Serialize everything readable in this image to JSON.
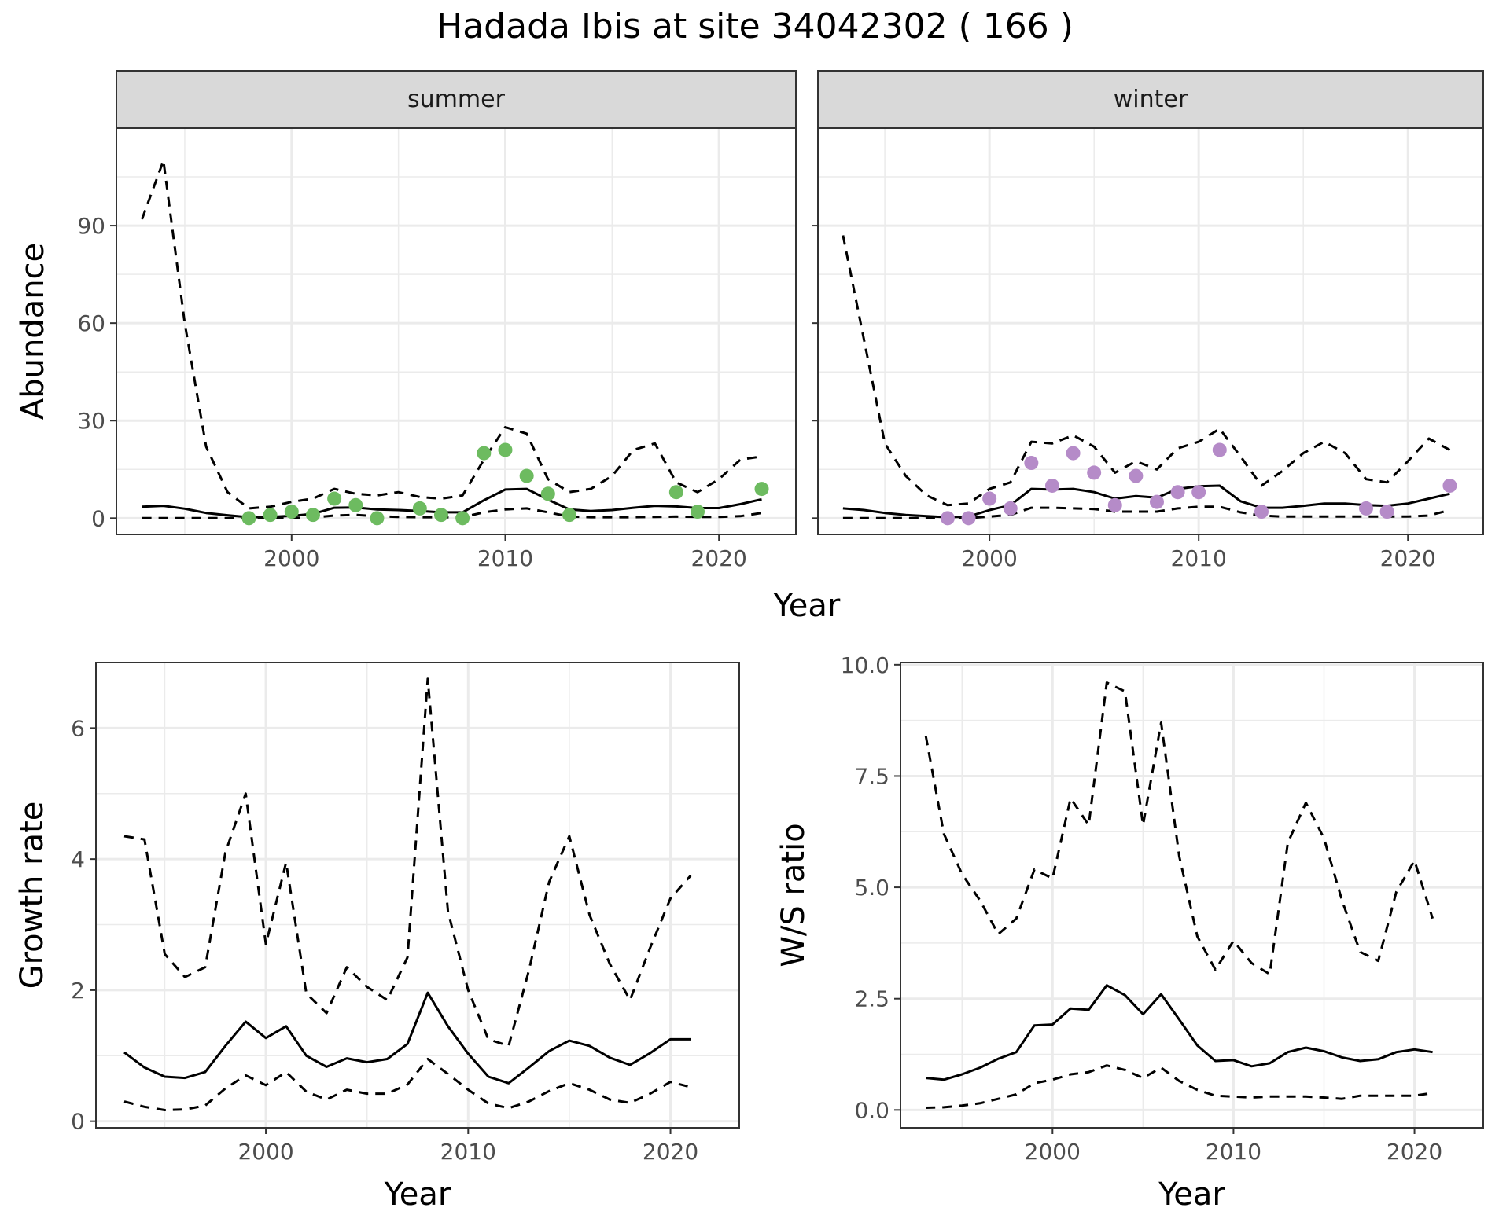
{
  "title": "Hadada Ibis at site 34042302 ( 166 )",
  "colors": {
    "summer_points": "#6dbb60",
    "winter_points": "#b58bc8",
    "lines": "#000000",
    "grid": "#ebebeb",
    "strip_fill": "#d9d9d9"
  },
  "chart_data": [
    {
      "id": "summer",
      "type": "line",
      "strip": "summer",
      "xlabel": "Year",
      "ylabel": "Abundance",
      "xlim": [
        1991.8,
        2023.6
      ],
      "ylim": [
        -5,
        120
      ],
      "xticks": [
        2000,
        2010,
        2020
      ],
      "yticks": [
        0,
        30,
        60,
        90
      ],
      "grid": true,
      "series": [
        {
          "role": "estimate",
          "style": "solid",
          "x": [
            1993,
            1994,
            1995,
            1996,
            1997,
            1998,
            1999,
            2000,
            2001,
            2002,
            2003,
            2004,
            2005,
            2006,
            2007,
            2008,
            2009,
            2010,
            2011,
            2012,
            2013,
            2014,
            2015,
            2016,
            2017,
            2018,
            2019,
            2020,
            2021,
            2022
          ],
          "y": [
            3.5,
            3.8,
            2.9,
            1.6,
            0.9,
            0.3,
            0.4,
            0.7,
            1.3,
            3.2,
            3.3,
            2.7,
            2.5,
            2.2,
            1.8,
            1.8,
            5.5,
            8.8,
            9,
            5.7,
            2.7,
            2.2,
            2.5,
            3.2,
            3.8,
            3.6,
            3.1,
            3.1,
            4.3,
            5.8
          ]
        },
        {
          "role": "upper",
          "style": "dashed",
          "x": [
            1993,
            1994,
            1995,
            1996,
            1997,
            1998,
            1999,
            2000,
            2001,
            2002,
            2003,
            2004,
            2005,
            2006,
            2007,
            2008,
            2009,
            2010,
            2011,
            2012,
            2013,
            2014,
            2015,
            2016,
            2017,
            2018,
            2019,
            2020,
            2021,
            2022
          ],
          "y": [
            92,
            110,
            60,
            22,
            8,
            3,
            3.5,
            5,
            6,
            9,
            7.5,
            7,
            8,
            6.5,
            6,
            7,
            18,
            28,
            26,
            12,
            8,
            9,
            13,
            21,
            23,
            11,
            8,
            12,
            18,
            19
          ]
        },
        {
          "role": "lower",
          "style": "dashed",
          "x": [
            1993,
            1994,
            1995,
            1996,
            1997,
            1998,
            1999,
            2000,
            2001,
            2002,
            2003,
            2004,
            2005,
            2006,
            2007,
            2008,
            2009,
            2010,
            2011,
            2012,
            2013,
            2014,
            2015,
            2016,
            2017,
            2018,
            2019,
            2020,
            2021,
            2022
          ],
          "y": [
            0,
            0,
            0,
            0,
            0,
            0,
            0.05,
            0.1,
            0.2,
            0.8,
            1,
            0.6,
            0.4,
            0.3,
            0.3,
            0.3,
            1.8,
            2.7,
            3,
            1.8,
            0.5,
            0.3,
            0.3,
            0.3,
            0.4,
            0.5,
            0.4,
            0.4,
            0.6,
            1.6
          ]
        },
        {
          "role": "counts",
          "style": "points",
          "x": [
            1998,
            1999,
            2000,
            2001,
            2002,
            2003,
            2004,
            2006,
            2007,
            2008,
            2009,
            2010,
            2011,
            2012,
            2013,
            2018,
            2019,
            2022
          ],
          "y": [
            0,
            1,
            2,
            1,
            6,
            4,
            0,
            3,
            1,
            0,
            20,
            21,
            13,
            7.5,
            1,
            8,
            2,
            9
          ]
        }
      ]
    },
    {
      "id": "winter",
      "type": "line",
      "strip": "winter",
      "xlabel": "Year",
      "ylabel": "Abundance",
      "xlim": [
        1991.8,
        2023.6
      ],
      "ylim": [
        -5,
        120
      ],
      "xticks": [
        2000,
        2010,
        2020
      ],
      "yticks": [
        0,
        30,
        60,
        90
      ],
      "grid": true,
      "series": [
        {
          "role": "estimate",
          "style": "solid",
          "x": [
            1993,
            1994,
            1995,
            1996,
            1997,
            1998,
            1999,
            2000,
            2001,
            2002,
            2003,
            2004,
            2005,
            2006,
            2007,
            2008,
            2009,
            2010,
            2011,
            2012,
            2013,
            2014,
            2015,
            2016,
            2017,
            2018,
            2019,
            2020,
            2021,
            2022
          ],
          "y": [
            3,
            2.5,
            1.6,
            1,
            0.6,
            0.3,
            0.5,
            2.5,
            4,
            9,
            8.8,
            9,
            8,
            6,
            6.8,
            6.3,
            9,
            9.8,
            10,
            5.2,
            3.2,
            3.2,
            3.8,
            4.5,
            4.5,
            4,
            3.8,
            4.5,
            6,
            7.5
          ]
        },
        {
          "role": "upper",
          "style": "dashed",
          "x": [
            1993,
            1994,
            1995,
            1996,
            1997,
            1998,
            1999,
            2000,
            2001,
            2002,
            2003,
            2004,
            2005,
            2006,
            2007,
            2008,
            2009,
            2010,
            2011,
            2012,
            2013,
            2014,
            2015,
            2016,
            2017,
            2018,
            2019,
            2020,
            2021,
            2022
          ],
          "y": [
            87,
            55,
            23,
            13,
            7,
            4,
            4.5,
            9,
            11,
            23.5,
            23,
            25.5,
            22,
            14,
            17.5,
            15,
            21.5,
            23.5,
            27.5,
            19,
            10,
            14.5,
            20,
            23.5,
            20,
            12,
            11,
            17.5,
            24.5,
            21
          ]
        },
        {
          "role": "lower",
          "style": "dashed",
          "x": [
            1993,
            1994,
            1995,
            1996,
            1997,
            1998,
            1999,
            2000,
            2001,
            2002,
            2003,
            2004,
            2005,
            2006,
            2007,
            2008,
            2009,
            2010,
            2011,
            2012,
            2013,
            2014,
            2015,
            2016,
            2017,
            2018,
            2019,
            2020,
            2021,
            2022
          ],
          "y": [
            0,
            0,
            0,
            0,
            0,
            0,
            0,
            0.5,
            1,
            3.2,
            3.2,
            3,
            2.8,
            2,
            2,
            2,
            3,
            3.5,
            3.5,
            1.8,
            0.8,
            0.5,
            0.5,
            0.5,
            0.5,
            0.5,
            0.5,
            0.5,
            0.8,
            2.5
          ]
        },
        {
          "role": "counts",
          "style": "points",
          "x": [
            1998,
            1999,
            2000,
            2001,
            2002,
            2003,
            2004,
            2005,
            2006,
            2007,
            2008,
            2009,
            2010,
            2011,
            2013,
            2018,
            2019,
            2022
          ],
          "y": [
            0,
            0,
            6,
            3,
            17,
            10,
            20,
            14,
            4,
            13,
            5,
            8,
            8,
            21,
            2,
            3,
            2,
            10
          ]
        }
      ]
    },
    {
      "id": "growth",
      "type": "line",
      "xlabel": "Year",
      "ylabel": "Growth rate",
      "xlim": [
        1991.6,
        2023.4
      ],
      "ylim": [
        -0.1,
        7.0
      ],
      "xticks": [
        2000,
        2010,
        2020
      ],
      "yticks": [
        0,
        2,
        4,
        6
      ],
      "grid": true,
      "series": [
        {
          "role": "estimate",
          "style": "solid",
          "x": [
            1993,
            1994,
            1995,
            1996,
            1997,
            1998,
            1999,
            2000,
            2001,
            2002,
            2003,
            2004,
            2005,
            2006,
            2007,
            2008,
            2009,
            2010,
            2011,
            2012,
            2013,
            2014,
            2015,
            2016,
            2017,
            2018,
            2019,
            2020,
            2021
          ],
          "y": [
            1.05,
            0.82,
            0.68,
            0.66,
            0.75,
            1.15,
            1.52,
            1.27,
            1.45,
            1,
            0.83,
            0.96,
            0.9,
            0.95,
            1.18,
            1.96,
            1.45,
            1.03,
            0.68,
            0.58,
            0.82,
            1.07,
            1.23,
            1.15,
            0.97,
            0.86,
            1.04,
            1.25,
            1.25
          ]
        },
        {
          "role": "upper",
          "style": "dashed",
          "x": [
            1993,
            1994,
            1995,
            1996,
            1997,
            1998,
            1999,
            2000,
            2001,
            2002,
            2003,
            2004,
            2005,
            2006,
            2007,
            2008,
            2009,
            2010,
            2011,
            2012,
            2013,
            2014,
            2015,
            2016,
            2017,
            2018,
            2019,
            2020,
            2021
          ],
          "y": [
            4.35,
            4.3,
            2.55,
            2.2,
            2.35,
            4.1,
            5,
            2.7,
            3.95,
            1.95,
            1.65,
            2.35,
            2.05,
            1.85,
            2.5,
            6.75,
            3.2,
            2,
            1.25,
            1.15,
            2.3,
            3.65,
            4.35,
            3.15,
            2.4,
            1.85,
            2.65,
            3.4,
            3.75
          ]
        },
        {
          "role": "lower",
          "style": "dashed",
          "x": [
            1993,
            1994,
            1995,
            1996,
            1997,
            1998,
            1999,
            2000,
            2001,
            2002,
            2003,
            2004,
            2005,
            2006,
            2007,
            2008,
            2009,
            2010,
            2011,
            2012,
            2013,
            2014,
            2015,
            2016,
            2017,
            2018,
            2019,
            2020,
            2021
          ],
          "y": [
            0.3,
            0.22,
            0.17,
            0.18,
            0.24,
            0.5,
            0.7,
            0.55,
            0.75,
            0.45,
            0.33,
            0.48,
            0.42,
            0.42,
            0.56,
            0.95,
            0.72,
            0.48,
            0.27,
            0.2,
            0.3,
            0.46,
            0.58,
            0.48,
            0.33,
            0.28,
            0.42,
            0.6,
            0.52
          ]
        }
      ]
    },
    {
      "id": "ratio",
      "type": "line",
      "xlabel": "Year",
      "ylabel": "W/S ratio",
      "xlim": [
        1991.6,
        2023.8
      ],
      "ylim": [
        -0.4,
        10.05
      ],
      "xticks": [
        2000,
        2010,
        2020
      ],
      "yticks": [
        0.0,
        2.5,
        5.0,
        7.5,
        10.0
      ],
      "yticklabels": [
        "0.0",
        "2.5",
        "5.0",
        "7.5",
        "10.0"
      ],
      "grid": true,
      "series": [
        {
          "role": "estimate",
          "style": "solid",
          "x": [
            1993,
            1994,
            1995,
            1996,
            1997,
            1998,
            1999,
            2000,
            2001,
            2002,
            2003,
            2004,
            2005,
            2006,
            2007,
            2008,
            2009,
            2010,
            2011,
            2012,
            2013,
            2014,
            2015,
            2016,
            2017,
            2018,
            2019,
            2020,
            2021
          ],
          "y": [
            0.72,
            0.68,
            0.8,
            0.95,
            1.15,
            1.3,
            1.9,
            1.92,
            2.28,
            2.25,
            2.8,
            2.58,
            2.15,
            2.6,
            2.03,
            1.45,
            1.1,
            1.12,
            0.98,
            1.05,
            1.3,
            1.4,
            1.32,
            1.18,
            1.1,
            1.14,
            1.3,
            1.36,
            1.3
          ]
        },
        {
          "role": "upper",
          "style": "dashed",
          "x": [
            1993,
            1994,
            1995,
            1996,
            1997,
            1998,
            1999,
            2000,
            2001,
            2002,
            2003,
            2004,
            2005,
            2006,
            2007,
            2008,
            2009,
            2010,
            2011,
            2012,
            2013,
            2014,
            2015,
            2016,
            2017,
            2018,
            2019,
            2020,
            2021
          ],
          "y": [
            8.4,
            6.2,
            5.3,
            4.7,
            3.95,
            4.3,
            5.4,
            5.2,
            7,
            6.4,
            9.6,
            9.4,
            6.4,
            8.7,
            5.7,
            3.9,
            3.15,
            3.8,
            3.3,
            3.05,
            6,
            6.9,
            6.1,
            4.7,
            3.55,
            3.35,
            4.9,
            5.6,
            4.3
          ]
        },
        {
          "role": "lower",
          "style": "dashed",
          "x": [
            1993,
            1994,
            1995,
            1996,
            1997,
            1998,
            1999,
            2000,
            2001,
            2002,
            2003,
            2004,
            2005,
            2006,
            2007,
            2008,
            2009,
            2010,
            2011,
            2012,
            2013,
            2014,
            2015,
            2016,
            2017,
            2018,
            2019,
            2020,
            2021
          ],
          "y": [
            0.05,
            0.06,
            0.1,
            0.15,
            0.25,
            0.35,
            0.6,
            0.68,
            0.8,
            0.85,
            1,
            0.9,
            0.72,
            0.95,
            0.65,
            0.45,
            0.32,
            0.3,
            0.28,
            0.3,
            0.3,
            0.3,
            0.28,
            0.25,
            0.32,
            0.32,
            0.32,
            0.32,
            0.38
          ]
        }
      ]
    }
  ]
}
